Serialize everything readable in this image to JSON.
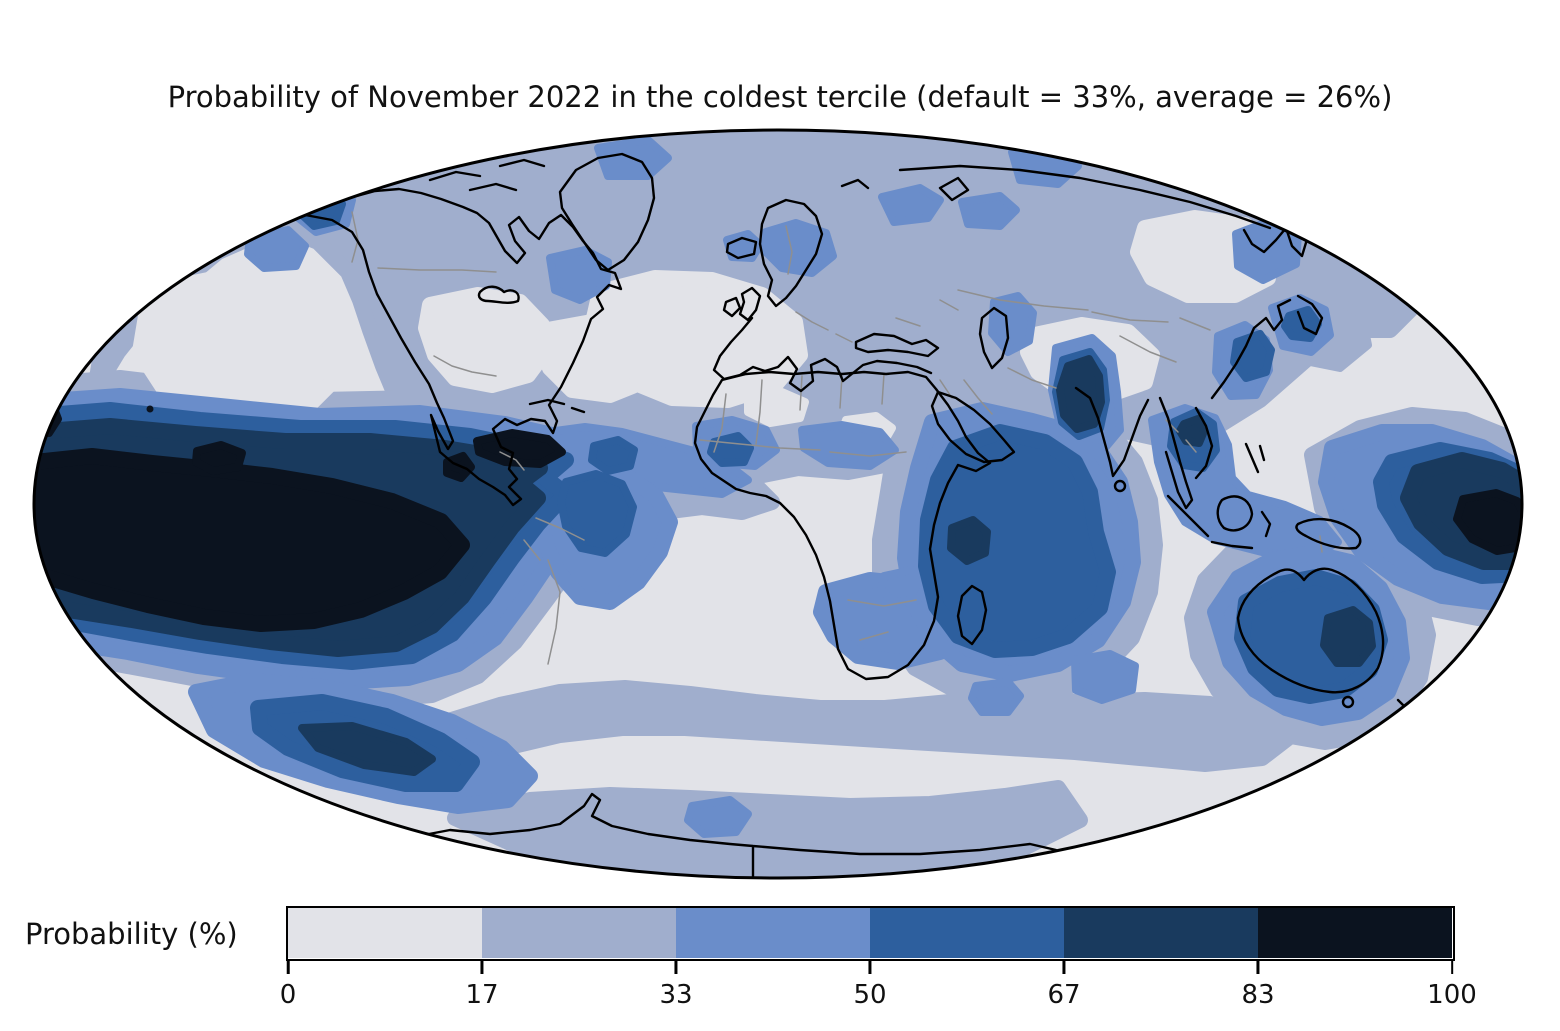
{
  "figure": {
    "title": "Probability of November 2022 in the coldest tercile (default = 33%, average = 26%)"
  },
  "colorbar": {
    "label": "Probability (%)",
    "orientation": "horizontal",
    "ticks": [
      "0",
      "17",
      "33",
      "50",
      "67",
      "83",
      "100"
    ],
    "colors": [
      "#e2e3e8",
      "#a0aecd",
      "#6a8dca",
      "#2d5f9e",
      "#193a5e",
      "#0b131f"
    ]
  },
  "chart_data": {
    "type": "heatmap",
    "subtype": "filled-contour probability map on an oval (Mollweide-style) world projection",
    "title": "Probability of November 2022 in the coldest tercile (default = 33%, average = 26%)",
    "colorbar_label": "Probability (%)",
    "units": "%",
    "levels": [
      0,
      17,
      33,
      50,
      67,
      83,
      100
    ],
    "level_colors": [
      "#e2e3e8",
      "#a0aecd",
      "#6a8dca",
      "#2d5f9e",
      "#193a5e",
      "#0b131f"
    ],
    "default_probability_pct": 33,
    "average_probability_pct": 26,
    "legend_position": "bottom",
    "notable_regions": [
      {
        "region": "Central-eastern equatorial Pacific (La Nina cold tongue)",
        "probability_bin": "83-100"
      },
      {
        "region": "Ring around equatorial Pacific cold tongue",
        "probability_bin": "50-83"
      },
      {
        "region": "Western tropical Pacific at right map edge",
        "probability_bin": "67-100"
      },
      {
        "region": "Western tropical Indian Ocean / Arabian Sea",
        "probability_bin": "50-67"
      },
      {
        "region": "Bay of Bengal",
        "probability_bin": "67-83"
      },
      {
        "region": "Indochina / Vietnam",
        "probability_bin": "50-83"
      },
      {
        "region": "Australia interior",
        "probability_bin": "50-67"
      },
      {
        "region": "Eastern Australia",
        "probability_bin": "67-83"
      },
      {
        "region": "Southern Ocean southeast of South America",
        "probability_bin": "50-83"
      },
      {
        "region": "Equatorial Atlantic and eastern Brazil",
        "probability_bin": "33-67"
      },
      {
        "region": "East China coast, Korea/Japan seas, Caspian Sea",
        "probability_bin": "33-50"
      },
      {
        "region": "Most of Eurasia, Canada, Africa, Antarctica fringe",
        "probability_bin": "17-33"
      },
      {
        "region": "North Pacific, central North Atlantic, central US, subtropical South Atlantic/Pacific",
        "probability_bin": "0-17"
      }
    ]
  }
}
